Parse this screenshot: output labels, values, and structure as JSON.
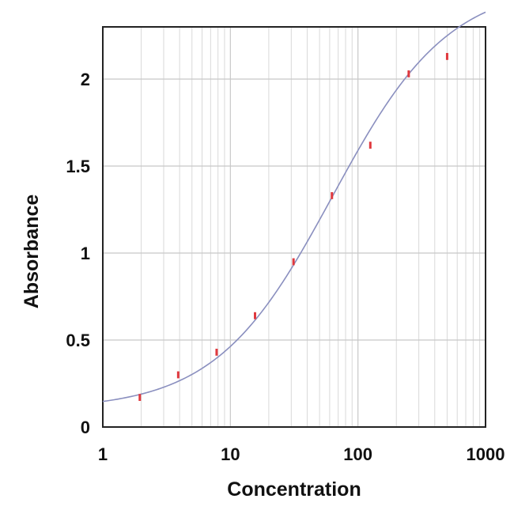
{
  "chart_data": {
    "type": "scatter",
    "title": "",
    "xlabel": "Concentration",
    "ylabel": "Absorbance",
    "x_scale": "log",
    "xlim": [
      1,
      1000
    ],
    "ylim": [
      0,
      2.3
    ],
    "grid": true,
    "x_tick_labels": [
      "1",
      "10",
      "100",
      "1000"
    ],
    "x_ticks": [
      1,
      10,
      100,
      1000
    ],
    "y_tick_labels": [
      "0",
      "0.5",
      "1",
      "1.5",
      "2"
    ],
    "y_ticks": [
      0,
      0.5,
      1,
      1.5,
      2
    ],
    "points": [
      {
        "x": 1.95,
        "y": 0.17,
        "err": 0.02
      },
      {
        "x": 3.9,
        "y": 0.3,
        "err": 0.02
      },
      {
        "x": 7.8,
        "y": 0.43,
        "err": 0.02
      },
      {
        "x": 15.6,
        "y": 0.64,
        "err": 0.02
      },
      {
        "x": 31.25,
        "y": 0.95,
        "err": 0.02
      },
      {
        "x": 62.5,
        "y": 1.33,
        "err": 0.02
      },
      {
        "x": 125,
        "y": 1.62,
        "err": 0.02
      },
      {
        "x": 250,
        "y": 2.03,
        "err": 0.02
      },
      {
        "x": 500,
        "y": 2.13,
        "err": 0.02
      }
    ],
    "fit_curve": {
      "model": "4PL",
      "bottom": 0.1,
      "top": 2.55,
      "ec50": 63,
      "hill": 0.95
    },
    "colors": {
      "points": "#e0393e",
      "curve": "#8a8fbf",
      "grid": "#d9d9d9",
      "axis": "#222222"
    }
  }
}
